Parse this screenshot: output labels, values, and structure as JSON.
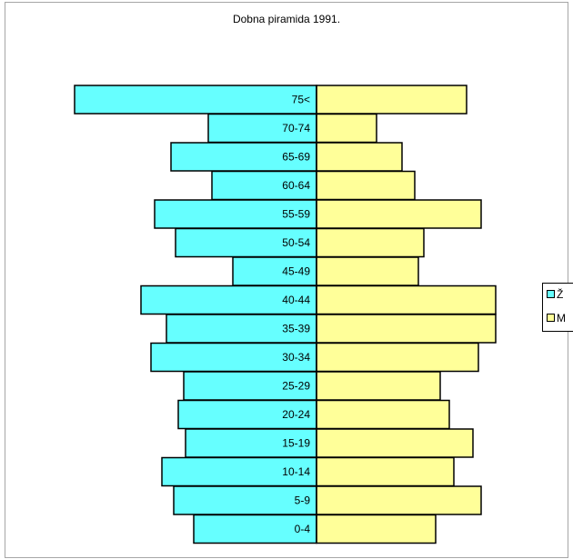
{
  "chart_data": {
    "type": "bar",
    "title": "Dobna piramida 1991.",
    "categories": [
      "75<",
      "70-74",
      "65-69",
      "60-64",
      "55-59",
      "50-54",
      "45-49",
      "40-44",
      "35-39",
      "30-34",
      "25-29",
      "20-24",
      "15-19",
      "10-14",
      "5-9",
      "0-4"
    ],
    "series": [
      {
        "name": "Ž",
        "color": "#66ffff",
        "side": "left",
        "values": [
          266,
          119,
          160,
          115,
          178,
          155,
          92,
          193,
          165,
          182,
          146,
          152,
          144,
          170,
          157,
          135
        ]
      },
      {
        "name": "M",
        "color": "#ffff99",
        "side": "right",
        "values": [
          165,
          66,
          94,
          108,
          181,
          118,
          112,
          197,
          197,
          178,
          136,
          146,
          172,
          151,
          181,
          131
        ]
      }
    ],
    "grid": false,
    "legend": "right",
    "orientation": "horizontal-pyramid"
  }
}
